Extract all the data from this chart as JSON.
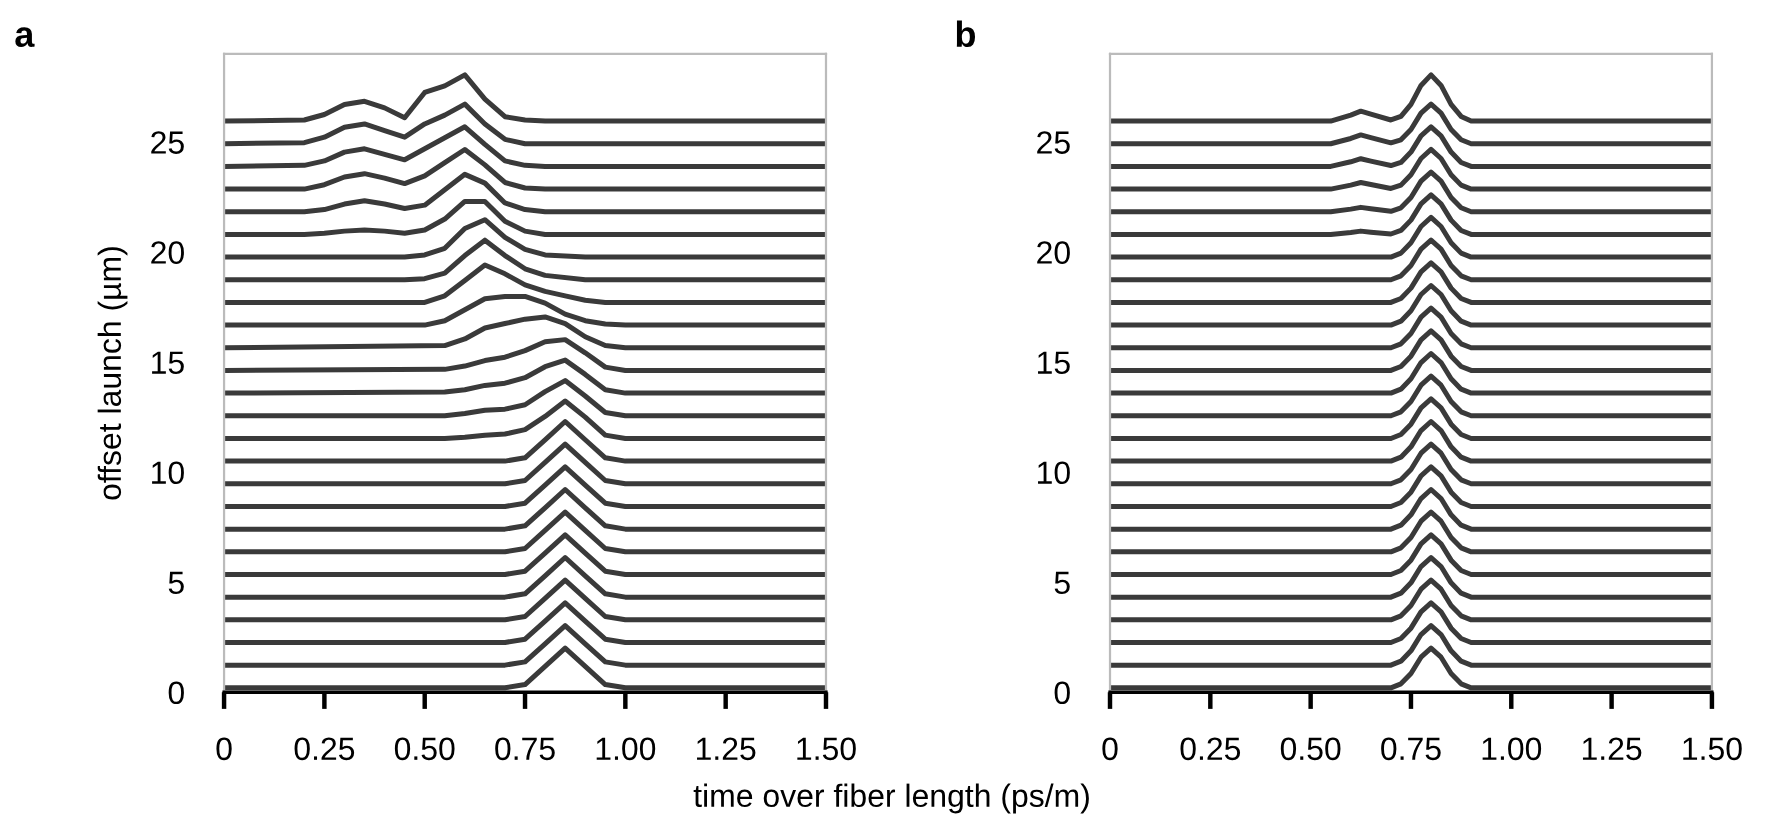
{
  "chart_data": [
    {
      "type": "line",
      "title": "a",
      "ylabel": "offset launch (µm)",
      "xlabel": "time over fiber length (ps/m)",
      "xlim": [
        0,
        1.5
      ],
      "ylim": [
        0,
        29
      ],
      "yticks": [
        0,
        5,
        10,
        15,
        20,
        25
      ],
      "xticks": [
        0,
        0.25,
        {
          "value": 0.5,
          "label": "0.50"
        },
        0.75,
        {
          "value": 1.0,
          "label": "1.00"
        },
        1.25,
        {
          "value": 1.5,
          "label": "1.50"
        }
      ],
      "grid": false,
      "legend": false,
      "series": [
        {
          "color": "#3a3a3a",
          "x": [
            0,
            0.7,
            0.75,
            0.8,
            0.85,
            0.9,
            0.95,
            1.0,
            1.5
          ],
          "values": [
            0.2,
            0.2,
            0.35,
            1.17,
            2.0,
            1.17,
            0.35,
            0.2,
            0.2
          ]
        },
        {
          "color": "#3a3a3a",
          "x": [
            0,
            0.7,
            0.75,
            0.8,
            0.85,
            0.9,
            0.95,
            1.0,
            1.5
          ],
          "values": [
            1.23,
            1.23,
            1.38,
            2.2,
            3.03,
            2.2,
            1.38,
            1.23,
            1.23
          ]
        },
        {
          "color": "#3a3a3a",
          "x": [
            0,
            0.7,
            0.75,
            0.8,
            0.85,
            0.9,
            0.95,
            1.0,
            1.5
          ],
          "values": [
            2.26,
            2.26,
            2.41,
            3.23,
            4.06,
            3.23,
            2.41,
            2.26,
            2.26
          ]
        },
        {
          "color": "#3a3a3a",
          "x": [
            0,
            0.7,
            0.75,
            0.8,
            0.85,
            0.9,
            0.95,
            1.0,
            1.5
          ],
          "values": [
            3.29,
            3.29,
            3.44,
            4.26,
            5.09,
            4.26,
            3.44,
            3.29,
            3.29
          ]
        },
        {
          "color": "#3a3a3a",
          "x": [
            0,
            0.7,
            0.75,
            0.8,
            0.85,
            0.9,
            0.95,
            1.0,
            1.5
          ],
          "values": [
            4.32,
            4.32,
            4.47,
            5.29,
            6.12,
            5.29,
            4.47,
            4.32,
            4.32
          ]
        },
        {
          "color": "#3a3a3a",
          "x": [
            0,
            0.7,
            0.75,
            0.8,
            0.85,
            0.9,
            0.95,
            1.0,
            1.5
          ],
          "values": [
            5.35,
            5.35,
            5.5,
            6.32,
            7.15,
            6.32,
            5.5,
            5.35,
            5.35
          ]
        },
        {
          "color": "#3a3a3a",
          "x": [
            0,
            0.7,
            0.75,
            0.8,
            0.85,
            0.9,
            0.95,
            1.0,
            1.5
          ],
          "values": [
            6.38,
            6.38,
            6.53,
            7.35,
            8.18,
            7.35,
            6.53,
            6.38,
            6.38
          ]
        },
        {
          "color": "#3a3a3a",
          "x": [
            0,
            0.7,
            0.75,
            0.8,
            0.85,
            0.9,
            0.95,
            1.0,
            1.5
          ],
          "values": [
            7.41,
            7.41,
            7.56,
            8.38,
            9.21,
            8.38,
            7.56,
            7.41,
            7.41
          ]
        },
        {
          "color": "#3a3a3a",
          "x": [
            0,
            0.7,
            0.75,
            0.8,
            0.85,
            0.9,
            0.95,
            1.0,
            1.5
          ],
          "values": [
            8.44,
            8.44,
            8.59,
            9.41,
            10.24,
            9.41,
            8.59,
            8.44,
            8.44
          ]
        },
        {
          "color": "#3a3a3a",
          "x": [
            0,
            0.7,
            0.75,
            0.8,
            0.85,
            0.9,
            0.95,
            1.0,
            1.5
          ],
          "values": [
            9.47,
            9.47,
            9.62,
            10.44,
            11.27,
            10.44,
            9.62,
            9.47,
            9.47
          ]
        },
        {
          "color": "#3a3a3a",
          "x": [
            0,
            0.7,
            0.75,
            0.8,
            0.85,
            0.9,
            0.95,
            1.0,
            1.5
          ],
          "values": [
            10.5,
            10.5,
            10.65,
            11.47,
            12.3,
            11.47,
            10.65,
            10.5,
            10.5
          ]
        },
        {
          "color": "#3a3a3a",
          "x": [
            0,
            0.55,
            0.6,
            0.65,
            0.7,
            0.75,
            0.8,
            0.85,
            0.9,
            0.95,
            1.0,
            1.5
          ],
          "values": [
            11.53,
            11.53,
            11.58,
            11.68,
            11.73,
            11.93,
            12.53,
            13.23,
            12.5,
            11.68,
            11.53,
            11.53
          ]
        },
        {
          "color": "#3a3a3a",
          "x": [
            0,
            0.55,
            0.6,
            0.65,
            0.7,
            0.75,
            0.8,
            0.85,
            0.9,
            0.95,
            1.0,
            1.5
          ],
          "values": [
            12.56,
            12.56,
            12.66,
            12.81,
            12.86,
            13.06,
            13.66,
            14.16,
            13.46,
            12.71,
            12.56,
            12.56
          ]
        },
        {
          "color": "#3a3a3a",
          "x": [
            0,
            0.55,
            0.6,
            0.65,
            0.7,
            0.75,
            0.8,
            0.85,
            0.9,
            0.95,
            1.0,
            1.5
          ],
          "values": [
            13.59,
            13.64,
            13.74,
            13.94,
            14.04,
            14.29,
            14.79,
            15.09,
            14.44,
            13.74,
            13.59,
            13.59
          ]
        },
        {
          "color": "#3a3a3a",
          "x": [
            0,
            0.55,
            0.6,
            0.65,
            0.7,
            0.75,
            0.8,
            0.85,
            0.9,
            0.95,
            1.0,
            1.5
          ],
          "values": [
            14.62,
            14.67,
            14.82,
            15.07,
            15.22,
            15.52,
            15.92,
            16.02,
            15.42,
            14.77,
            14.62,
            14.62
          ]
        },
        {
          "color": "#3a3a3a",
          "values": [
            15.65,
            15.75,
            16.05,
            16.55,
            16.75,
            16.95,
            17.05,
            16.75,
            16.15,
            15.75,
            15.65,
            15.65
          ],
          "x": [
            0,
            0.55,
            0.6,
            0.65,
            0.7,
            0.75,
            0.8,
            0.85,
            0.9,
            0.95,
            1.0,
            1.5
          ]
        },
        {
          "color": "#3a3a3a",
          "values": [
            16.68,
            16.68,
            16.88,
            17.38,
            17.88,
            17.98,
            17.98,
            17.68,
            17.18,
            16.88,
            16.73,
            16.68,
            16.68
          ],
          "x": [
            0,
            0.5,
            0.55,
            0.6,
            0.65,
            0.7,
            0.75,
            0.8,
            0.85,
            0.9,
            0.95,
            1.0,
            1.5
          ]
        },
        {
          "color": "#3a3a3a",
          "values": [
            17.71,
            17.71,
            18.01,
            18.71,
            19.41,
            19.01,
            18.51,
            18.21,
            18.01,
            17.81,
            17.71,
            17.71,
            17.71
          ],
          "x": [
            0,
            0.5,
            0.55,
            0.6,
            0.65,
            0.7,
            0.75,
            0.8,
            0.85,
            0.9,
            0.95,
            1.0,
            1.5
          ]
        },
        {
          "color": "#3a3a3a",
          "values": [
            18.74,
            18.74,
            18.74,
            18.74,
            18.74,
            18.74,
            18.74,
            18.79,
            19.04,
            19.84,
            20.54,
            19.84,
            19.24,
            18.94,
            18.74,
            18.74
          ],
          "x": [
            0,
            0.2,
            0.25,
            0.3,
            0.35,
            0.4,
            0.45,
            0.5,
            0.55,
            0.6,
            0.65,
            0.7,
            0.75,
            0.8,
            0.9,
            1.5
          ]
        },
        {
          "color": "#3a3a3a",
          "values": [
            19.77,
            19.77,
            19.77,
            19.77,
            19.77,
            19.77,
            19.77,
            19.87,
            20.17,
            21.07,
            21.47,
            20.67,
            20.12,
            19.87,
            19.77,
            19.77
          ],
          "x": [
            0,
            0.2,
            0.25,
            0.3,
            0.35,
            0.4,
            0.45,
            0.5,
            0.55,
            0.6,
            0.65,
            0.7,
            0.75,
            0.8,
            0.9,
            1.5
          ]
        },
        {
          "color": "#3a3a3a",
          "x": [
            0,
            0.2,
            0.25,
            0.3,
            0.35,
            0.4,
            0.45,
            0.5,
            0.55,
            0.6,
            0.65,
            0.7,
            0.75,
            0.8,
            1.5
          ],
          "values": [
            20.8,
            20.8,
            20.85,
            20.95,
            21.0,
            20.95,
            20.85,
            21.0,
            21.5,
            22.3,
            22.3,
            21.4,
            20.95,
            20.8,
            20.8
          ]
        },
        {
          "color": "#3a3a3a",
          "x": [
            0,
            0.2,
            0.25,
            0.3,
            0.35,
            0.4,
            0.45,
            0.5,
            0.55,
            0.6,
            0.65,
            0.7,
            0.75,
            0.8,
            1.5
          ],
          "values": [
            21.83,
            21.83,
            21.93,
            22.18,
            22.33,
            22.18,
            21.98,
            22.13,
            22.83,
            23.53,
            23.13,
            22.23,
            21.93,
            21.83,
            21.83
          ]
        },
        {
          "color": "#3a3a3a",
          "x": [
            0,
            0.2,
            0.25,
            0.3,
            0.35,
            0.4,
            0.45,
            0.5,
            0.55,
            0.6,
            0.65,
            0.7,
            0.75,
            0.8,
            1.5
          ],
          "values": [
            22.86,
            22.86,
            23.06,
            23.41,
            23.56,
            23.36,
            23.11,
            23.46,
            24.06,
            24.66,
            23.96,
            23.16,
            22.91,
            22.86,
            22.86
          ]
        },
        {
          "color": "#3a3a3a",
          "x": [
            0,
            0.2,
            0.25,
            0.3,
            0.35,
            0.4,
            0.45,
            0.5,
            0.55,
            0.6,
            0.65,
            0.7,
            0.75,
            0.8,
            1.5
          ],
          "values": [
            23.89,
            23.94,
            24.14,
            24.54,
            24.69,
            24.44,
            24.19,
            24.69,
            25.19,
            25.69,
            24.89,
            24.14,
            23.94,
            23.89,
            23.89
          ]
        },
        {
          "color": "#3a3a3a",
          "x": [
            0,
            0.2,
            0.25,
            0.3,
            0.35,
            0.4,
            0.45,
            0.5,
            0.55,
            0.6,
            0.65,
            0.7,
            0.75,
            0.8,
            1.5
          ],
          "values": [
            24.92,
            24.97,
            25.22,
            25.67,
            25.82,
            25.52,
            25.22,
            25.82,
            26.22,
            26.72,
            25.82,
            25.12,
            24.92,
            24.92,
            24.92
          ]
        },
        {
          "color": "#3a3a3a",
          "x": [
            0,
            0.2,
            0.25,
            0.3,
            0.35,
            0.4,
            0.45,
            0.5,
            0.55,
            0.6,
            0.65,
            0.7,
            0.75,
            0.8,
            1.5
          ],
          "values": [
            25.95,
            26.0,
            26.25,
            26.7,
            26.85,
            26.55,
            26.1,
            27.25,
            27.55,
            28.05,
            26.95,
            26.15,
            26.0,
            25.95,
            25.95
          ]
        }
      ]
    },
    {
      "type": "line",
      "title": "b",
      "xlim": [
        0,
        1.5
      ],
      "ylim": [
        0,
        29
      ],
      "yticks": [
        0,
        5,
        10,
        15,
        20,
        25
      ],
      "xticks": [
        0,
        0.25,
        {
          "value": 0.5,
          "label": "0.50"
        },
        0.75,
        {
          "value": 1.0,
          "label": "1.00"
        },
        1.25,
        {
          "value": 1.5,
          "label": "1.50"
        }
      ],
      "grid": false,
      "legend": false,
      "series": [
        {
          "color": "#3a3a3a",
          "x": [
            0,
            0.7,
            0.725,
            0.75,
            0.775,
            0.8,
            0.825,
            0.85,
            0.875,
            0.9,
            1.5
          ],
          "values": [
            0.2,
            0.2,
            0.38,
            0.85,
            1.59,
            2.0,
            1.59,
            0.85,
            0.38,
            0.2,
            0.2
          ]
        },
        {
          "color": "#3a3a3a",
          "x": [
            0,
            0.7,
            0.725,
            0.75,
            0.775,
            0.8,
            0.825,
            0.85,
            0.875,
            0.9,
            1.5
          ],
          "values": [
            1.23,
            1.23,
            1.41,
            1.88,
            2.62,
            3.03,
            2.62,
            1.88,
            1.41,
            1.23,
            1.23
          ]
        },
        {
          "color": "#3a3a3a",
          "x": [
            0,
            0.7,
            0.725,
            0.75,
            0.775,
            0.8,
            0.825,
            0.85,
            0.875,
            0.9,
            1.5
          ],
          "values": [
            2.26,
            2.26,
            2.44,
            2.91,
            3.65,
            4.06,
            3.65,
            2.91,
            2.44,
            2.26,
            2.26
          ]
        },
        {
          "color": "#3a3a3a",
          "x": [
            0,
            0.7,
            0.725,
            0.75,
            0.775,
            0.8,
            0.825,
            0.85,
            0.875,
            0.9,
            1.5
          ],
          "values": [
            3.29,
            3.29,
            3.47,
            3.94,
            4.68,
            5.09,
            4.68,
            3.94,
            3.47,
            3.29,
            3.29
          ]
        },
        {
          "color": "#3a3a3a",
          "x": [
            0,
            0.7,
            0.725,
            0.75,
            0.775,
            0.8,
            0.825,
            0.85,
            0.875,
            0.9,
            1.5
          ],
          "values": [
            4.32,
            4.32,
            4.5,
            4.97,
            5.71,
            6.12,
            5.71,
            4.97,
            4.5,
            4.32,
            4.32
          ]
        },
        {
          "color": "#3a3a3a",
          "x": [
            0,
            0.7,
            0.725,
            0.75,
            0.775,
            0.8,
            0.825,
            0.85,
            0.875,
            0.9,
            1.5
          ],
          "values": [
            5.35,
            5.35,
            5.53,
            6.0,
            6.74,
            7.15,
            6.74,
            6.0,
            5.53,
            5.35,
            5.35
          ]
        },
        {
          "color": "#3a3a3a",
          "x": [
            0,
            0.7,
            0.725,
            0.75,
            0.775,
            0.8,
            0.825,
            0.85,
            0.875,
            0.9,
            1.5
          ],
          "values": [
            6.38,
            6.38,
            6.56,
            7.03,
            7.77,
            8.18,
            7.77,
            7.03,
            6.56,
            6.38,
            6.38
          ]
        },
        {
          "color": "#3a3a3a",
          "x": [
            0,
            0.7,
            0.725,
            0.75,
            0.775,
            0.8,
            0.825,
            0.85,
            0.875,
            0.9,
            1.5
          ],
          "values": [
            7.41,
            7.41,
            7.59,
            8.06,
            8.8,
            9.21,
            8.8,
            8.06,
            7.59,
            7.41,
            7.41
          ]
        },
        {
          "color": "#3a3a3a",
          "x": [
            0,
            0.7,
            0.725,
            0.75,
            0.775,
            0.8,
            0.825,
            0.85,
            0.875,
            0.9,
            1.5
          ],
          "values": [
            8.44,
            8.44,
            8.62,
            9.09,
            9.83,
            10.24,
            9.83,
            9.09,
            8.62,
            8.44,
            8.44
          ]
        },
        {
          "color": "#3a3a3a",
          "x": [
            0,
            0.7,
            0.725,
            0.75,
            0.775,
            0.8,
            0.825,
            0.85,
            0.875,
            0.9,
            1.5
          ],
          "values": [
            9.47,
            9.47,
            9.65,
            10.12,
            10.86,
            11.27,
            10.86,
            10.12,
            9.65,
            9.47,
            9.47
          ]
        },
        {
          "color": "#3a3a3a",
          "x": [
            0,
            0.7,
            0.725,
            0.75,
            0.775,
            0.8,
            0.825,
            0.85,
            0.875,
            0.9,
            1.5
          ],
          "values": [
            10.5,
            10.5,
            10.68,
            11.15,
            11.89,
            12.3,
            11.89,
            11.15,
            10.68,
            10.5,
            10.5
          ]
        },
        {
          "color": "#3a3a3a",
          "x": [
            0,
            0.7,
            0.725,
            0.75,
            0.775,
            0.8,
            0.825,
            0.85,
            0.875,
            0.9,
            1.5
          ],
          "values": [
            11.53,
            11.53,
            11.71,
            12.18,
            12.92,
            13.33,
            12.92,
            12.18,
            11.71,
            11.53,
            11.53
          ]
        },
        {
          "color": "#3a3a3a",
          "x": [
            0,
            0.7,
            0.725,
            0.75,
            0.775,
            0.8,
            0.825,
            0.85,
            0.875,
            0.9,
            1.5
          ],
          "values": [
            12.56,
            12.56,
            12.74,
            13.21,
            13.95,
            14.36,
            13.95,
            13.21,
            12.74,
            12.56,
            12.56
          ]
        },
        {
          "color": "#3a3a3a",
          "x": [
            0,
            0.7,
            0.725,
            0.75,
            0.775,
            0.8,
            0.825,
            0.85,
            0.875,
            0.9,
            1.5
          ],
          "values": [
            13.59,
            13.59,
            13.77,
            14.24,
            14.98,
            15.39,
            14.98,
            14.24,
            13.77,
            13.59,
            13.59
          ]
        },
        {
          "color": "#3a3a3a",
          "x": [
            0,
            0.7,
            0.725,
            0.75,
            0.775,
            0.8,
            0.825,
            0.85,
            0.875,
            0.9,
            1.5
          ],
          "values": [
            14.62,
            14.62,
            14.8,
            15.27,
            16.01,
            16.42,
            16.01,
            15.27,
            14.8,
            14.62,
            14.62
          ]
        },
        {
          "color": "#3a3a3a",
          "x": [
            0,
            0.7,
            0.725,
            0.75,
            0.775,
            0.8,
            0.825,
            0.85,
            0.875,
            0.9,
            1.5
          ],
          "values": [
            15.65,
            15.65,
            15.83,
            16.3,
            17.04,
            17.45,
            17.04,
            16.3,
            15.83,
            15.65,
            15.65
          ]
        },
        {
          "color": "#3a3a3a",
          "x": [
            0,
            0.7,
            0.725,
            0.75,
            0.775,
            0.8,
            0.825,
            0.85,
            0.875,
            0.9,
            1.5
          ],
          "values": [
            16.68,
            16.68,
            16.86,
            17.33,
            18.07,
            18.48,
            18.07,
            17.33,
            16.86,
            16.68,
            16.68
          ]
        },
        {
          "color": "#3a3a3a",
          "x": [
            0,
            0.7,
            0.725,
            0.75,
            0.775,
            0.8,
            0.825,
            0.85,
            0.875,
            0.9,
            1.5
          ],
          "values": [
            17.71,
            17.71,
            17.89,
            18.36,
            19.1,
            19.51,
            19.1,
            18.36,
            17.89,
            17.71,
            17.71
          ]
        },
        {
          "color": "#3a3a3a",
          "x": [
            0,
            0.7,
            0.725,
            0.75,
            0.775,
            0.8,
            0.825,
            0.85,
            0.875,
            0.9,
            1.5
          ],
          "values": [
            18.74,
            18.74,
            18.92,
            19.39,
            20.13,
            20.54,
            20.13,
            19.39,
            18.92,
            18.74,
            18.74
          ]
        },
        {
          "color": "#3a3a3a",
          "x": [
            0,
            0.7,
            0.725,
            0.75,
            0.775,
            0.8,
            0.825,
            0.85,
            0.875,
            0.9,
            1.5
          ],
          "values": [
            19.77,
            19.77,
            19.95,
            20.42,
            21.16,
            21.57,
            21.16,
            20.42,
            19.95,
            19.77,
            19.77
          ]
        },
        {
          "color": "#3a3a3a",
          "x": [
            0,
            0.55,
            0.6,
            0.625,
            0.65,
            0.7,
            0.725,
            0.75,
            0.775,
            0.8,
            0.825,
            0.85,
            0.875,
            0.9,
            1.5
          ],
          "values": [
            20.8,
            20.8,
            20.89,
            20.95,
            20.9,
            20.82,
            20.98,
            21.45,
            22.19,
            22.6,
            22.19,
            21.45,
            20.98,
            20.8,
            20.8
          ]
        },
        {
          "color": "#3a3a3a",
          "x": [
            0,
            0.55,
            0.6,
            0.625,
            0.65,
            0.7,
            0.725,
            0.75,
            0.775,
            0.8,
            0.825,
            0.85,
            0.875,
            0.9,
            1.5
          ],
          "values": [
            21.83,
            21.83,
            21.95,
            22.03,
            21.97,
            21.85,
            22.01,
            22.48,
            23.22,
            23.63,
            23.22,
            22.48,
            22.01,
            21.83,
            21.83
          ]
        },
        {
          "color": "#3a3a3a",
          "x": [
            0,
            0.55,
            0.6,
            0.625,
            0.65,
            0.7,
            0.725,
            0.75,
            0.775,
            0.8,
            0.825,
            0.85,
            0.875,
            0.9,
            1.5
          ],
          "values": [
            22.86,
            22.86,
            23.04,
            23.16,
            23.07,
            22.89,
            23.04,
            23.51,
            24.25,
            24.66,
            24.25,
            23.51,
            23.04,
            22.86,
            22.86
          ]
        },
        {
          "color": "#3a3a3a",
          "x": [
            0,
            0.55,
            0.6,
            0.625,
            0.65,
            0.7,
            0.725,
            0.75,
            0.775,
            0.8,
            0.825,
            0.85,
            0.875,
            0.9,
            1.5
          ],
          "values": [
            23.89,
            23.89,
            24.1,
            24.24,
            24.13,
            23.93,
            24.07,
            24.54,
            25.28,
            25.69,
            25.28,
            24.54,
            24.07,
            23.89,
            23.89
          ]
        },
        {
          "color": "#3a3a3a",
          "x": [
            0,
            0.55,
            0.6,
            0.625,
            0.65,
            0.7,
            0.725,
            0.75,
            0.775,
            0.8,
            0.825,
            0.85,
            0.875,
            0.9,
            1.5
          ],
          "values": [
            24.92,
            24.92,
            25.16,
            25.32,
            25.2,
            24.96,
            25.1,
            25.57,
            26.31,
            26.72,
            26.31,
            25.57,
            25.1,
            24.92,
            24.92
          ]
        },
        {
          "color": "#3a3a3a",
          "x": [
            0,
            0.55,
            0.6,
            0.625,
            0.65,
            0.7,
            0.725,
            0.75,
            0.775,
            0.8,
            0.825,
            0.85,
            0.875,
            0.9,
            1.5
          ],
          "values": [
            25.95,
            25.95,
            26.22,
            26.4,
            26.27,
            26.0,
            26.16,
            26.71,
            27.57,
            28.05,
            27.57,
            26.71,
            26.16,
            25.95,
            25.95
          ]
        }
      ]
    }
  ]
}
